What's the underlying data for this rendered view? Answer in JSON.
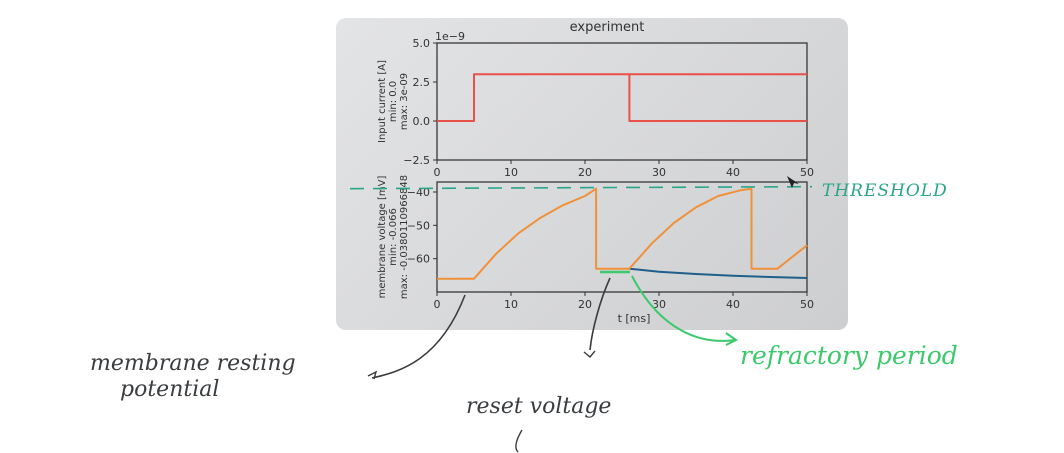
{
  "chart_data": [
    {
      "type": "line",
      "title": "experiment",
      "offset_label": "1e−9",
      "ylabel": [
        "Input current [A]",
        "min: 0.0",
        "max: 3e-09"
      ],
      "xlim": [
        0,
        50
      ],
      "ylim": [
        -2.5,
        5.0
      ],
      "xticks": [
        "0",
        "10",
        "20",
        "30",
        "40",
        "50"
      ],
      "yticks": [
        "5.0",
        "2.5",
        "0.0",
        "−2.5"
      ],
      "series": [
        {
          "color": "#e8514a",
          "x": [
            0,
            5,
            5,
            26,
            26,
            50
          ],
          "y": [
            0.0,
            0.0,
            3.0,
            3.0,
            0.0,
            0.0
          ]
        },
        {
          "color": "#e8514a",
          "x": [
            26,
            50
          ],
          "y": [
            3.0,
            3.0
          ]
        }
      ]
    },
    {
      "type": "line",
      "ylabel": [
        "membrane voltage [mV]",
        "min: -0.066",
        "max: -0.0380110966848"
      ],
      "xlabel": "t [ms]",
      "xlim": [
        0,
        50
      ],
      "ylim": [
        -70,
        -37
      ],
      "xticks": [
        "0",
        "10",
        "20",
        "30",
        "40",
        "50"
      ],
      "yticks": [
        "−40",
        "−50",
        "−60"
      ],
      "threshold": -39,
      "series": [
        {
          "color": "#1f5f8b",
          "x": [
            26,
            30,
            35,
            40,
            45,
            50
          ],
          "y": [
            -63.0,
            -63.9,
            -64.6,
            -65.1,
            -65.5,
            -65.8
          ]
        },
        {
          "color": "#f0913a",
          "x": [
            0,
            5,
            8,
            11,
            14,
            17,
            20,
            21.5,
            21.5,
            22,
            26,
            26,
            29,
            32,
            35,
            38,
            41,
            42.5,
            42.5,
            46,
            50
          ],
          "y": [
            -66,
            -66,
            -58.5,
            -52.4,
            -47.7,
            -44.0,
            -41.2,
            -39,
            -63,
            -63,
            -63,
            -63,
            -55.5,
            -49.3,
            -44.6,
            -41.2,
            -39.5,
            -39,
            -63,
            -63,
            -56
          ]
        }
      ]
    }
  ],
  "annotations": {
    "threshold": "THRESHOLD",
    "resting": [
      "membrane resting",
      "potential"
    ],
    "reset": "reset voltage",
    "refractory": "refractory period"
  },
  "colors": {
    "threshold_ink": "#2aa58a",
    "refractory_ink": "#3bc96b",
    "pen_ink": "#3a3d40"
  }
}
